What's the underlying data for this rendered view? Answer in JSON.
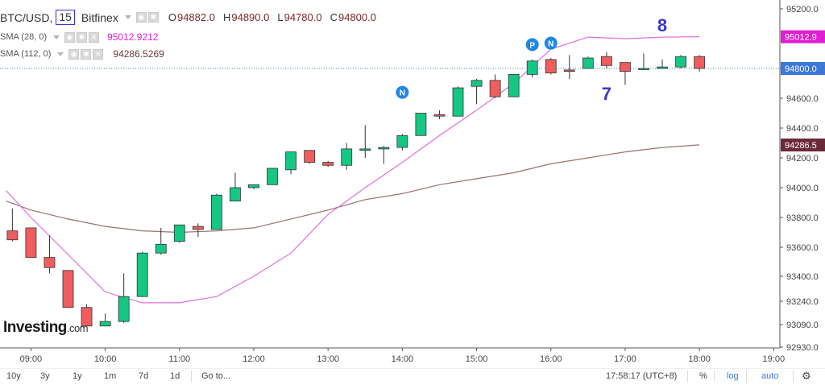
{
  "header": {
    "symbol": "BTC/USD,",
    "interval": "15",
    "exchange": "Bitfinex",
    "ohlc": [
      {
        "key": "O",
        "value": "94882.0"
      },
      {
        "key": "H",
        "value": "94890.0"
      },
      {
        "key": "L",
        "value": "94780.0"
      },
      {
        "key": "C",
        "value": "94800.0"
      }
    ]
  },
  "indicators": [
    {
      "name": "SMA (28, 0)",
      "value": "95012.9212",
      "color": "#e020d0"
    },
    {
      "name": "SMA (112, 0)",
      "value": "94286.5269",
      "color": "#8b5a5a"
    }
  ],
  "logo": {
    "main": "Investing",
    "suffix": ".com"
  },
  "bottom_bar": {
    "ranges": [
      "10y",
      "3y",
      "1y",
      "1m",
      "7d",
      "1d"
    ],
    "goto": "Go to...",
    "time": "17:58:17 (UTC+8)",
    "percent": "%",
    "log": "log",
    "auto": "auto"
  },
  "colors": {
    "up": "#16c784",
    "down": "#f05d5e",
    "sma_fast": "#e070e0",
    "sma_slow": "#9a7070",
    "last_price_tag": "#3c78d8",
    "annotation": "#3a35c8",
    "marker": "#1e88e5"
  },
  "chart_data": {
    "type": "candlestick",
    "x_ticks": [
      "09:00",
      "10:00",
      "11:00",
      "12:00",
      "13:00",
      "14:00",
      "15:00",
      "16:00",
      "17:00",
      "18:00",
      "19:00"
    ],
    "y_ticks": [
      "95200.0",
      "94800.0",
      "94600.0",
      "94400.0",
      "94200.0",
      "94000.0",
      "93800.0",
      "93600.0",
      "93400.0",
      "93240.0",
      "93090.0",
      "92930.0"
    ],
    "y_tick_values": [
      95200,
      94800,
      94600,
      94400,
      94200,
      94000,
      93800,
      93600,
      93400,
      93240,
      93090,
      92930
    ],
    "ylim": [
      92920,
      95260
    ],
    "xlim": [
      "08:35",
      "19:05"
    ],
    "candles": [
      {
        "t": "08:45",
        "o": 93710,
        "h": 93860,
        "l": 93640,
        "c": 93650
      },
      {
        "t": "09:00",
        "o": 93730,
        "h": 93730,
        "l": 93530,
        "c": 93530
      },
      {
        "t": "09:15",
        "o": 93530,
        "h": 93680,
        "l": 93420,
        "c": 93460
      },
      {
        "t": "09:30",
        "o": 93440,
        "h": 93440,
        "l": 93200,
        "c": 93200
      },
      {
        "t": "09:45",
        "o": 93200,
        "h": 93220,
        "l": 93080,
        "c": 93080
      },
      {
        "t": "10:00",
        "o": 93080,
        "h": 93160,
        "l": 93080,
        "c": 93110
      },
      {
        "t": "10:15",
        "o": 93110,
        "h": 93420,
        "l": 93100,
        "c": 93270
      },
      {
        "t": "10:30",
        "o": 93270,
        "h": 93570,
        "l": 93270,
        "c": 93560
      },
      {
        "t": "10:45",
        "o": 93560,
        "h": 93730,
        "l": 93550,
        "c": 93620
      },
      {
        "t": "11:00",
        "o": 93640,
        "h": 93740,
        "l": 93630,
        "c": 93750
      },
      {
        "t": "11:15",
        "o": 93740,
        "h": 93760,
        "l": 93670,
        "c": 93720
      },
      {
        "t": "11:30",
        "o": 93720,
        "h": 93960,
        "l": 93720,
        "c": 93950
      },
      {
        "t": "11:45",
        "o": 93910,
        "h": 94100,
        "l": 93910,
        "c": 94000
      },
      {
        "t": "12:00",
        "o": 94000,
        "h": 94010,
        "l": 93990,
        "c": 94020
      },
      {
        "t": "12:15",
        "o": 94020,
        "h": 94130,
        "l": 94020,
        "c": 94130
      },
      {
        "t": "12:30",
        "o": 94120,
        "h": 94240,
        "l": 94090,
        "c": 94240
      },
      {
        "t": "12:45",
        "o": 94250,
        "h": 94250,
        "l": 94160,
        "c": 94170
      },
      {
        "t": "13:00",
        "o": 94170,
        "h": 94180,
        "l": 94140,
        "c": 94150
      },
      {
        "t": "13:15",
        "o": 94150,
        "h": 94300,
        "l": 94120,
        "c": 94260
      },
      {
        "t": "13:30",
        "o": 94250,
        "h": 94420,
        "l": 94200,
        "c": 94260
      },
      {
        "t": "13:45",
        "o": 94260,
        "h": 94280,
        "l": 94160,
        "c": 94270
      },
      {
        "t": "14:00",
        "o": 94270,
        "h": 94360,
        "l": 94250,
        "c": 94350
      },
      {
        "t": "14:15",
        "o": 94350,
        "h": 94500,
        "l": 94350,
        "c": 94500
      },
      {
        "t": "14:30",
        "o": 94490,
        "h": 94520,
        "l": 94460,
        "c": 94480
      },
      {
        "t": "14:45",
        "o": 94480,
        "h": 94680,
        "l": 94480,
        "c": 94670
      },
      {
        "t": "15:00",
        "o": 94680,
        "h": 94730,
        "l": 94560,
        "c": 94720
      },
      {
        "t": "15:15",
        "o": 94720,
        "h": 94760,
        "l": 94600,
        "c": 94610
      },
      {
        "t": "15:30",
        "o": 94610,
        "h": 94760,
        "l": 94610,
        "c": 94760
      },
      {
        "t": "15:45",
        "o": 94760,
        "h": 94860,
        "l": 94740,
        "c": 94850
      },
      {
        "t": "16:00",
        "o": 94860,
        "h": 94870,
        "l": 94760,
        "c": 94770
      },
      {
        "t": "16:15",
        "o": 94790,
        "h": 94890,
        "l": 94730,
        "c": 94780
      },
      {
        "t": "16:30",
        "o": 94800,
        "h": 94880,
        "l": 94800,
        "c": 94870
      },
      {
        "t": "16:45",
        "o": 94880,
        "h": 94910,
        "l": 94800,
        "c": 94820
      },
      {
        "t": "17:00",
        "o": 94840,
        "h": 94840,
        "l": 94690,
        "c": 94780
      },
      {
        "t": "17:15",
        "o": 94800,
        "h": 94900,
        "l": 94790,
        "c": 94800
      },
      {
        "t": "17:30",
        "o": 94800,
        "h": 94860,
        "l": 94800,
        "c": 94810
      },
      {
        "t": "17:45",
        "o": 94810,
        "h": 94890,
        "l": 94800,
        "c": 94880
      },
      {
        "t": "18:00",
        "o": 94880,
        "h": 94890,
        "l": 94780,
        "c": 94800
      }
    ],
    "sma_fast": {
      "name": "SMA (28, 0)",
      "points": [
        [
          "08:40",
          93980
        ],
        [
          "09:00",
          93800
        ],
        [
          "09:30",
          93550
        ],
        [
          "10:00",
          93300
        ],
        [
          "10:30",
          93230
        ],
        [
          "11:00",
          93230
        ],
        [
          "11:30",
          93270
        ],
        [
          "12:00",
          93400
        ],
        [
          "12:30",
          93560
        ],
        [
          "13:00",
          93820
        ],
        [
          "13:30",
          94000
        ],
        [
          "14:00",
          94170
        ],
        [
          "14:30",
          94350
        ],
        [
          "15:00",
          94520
        ],
        [
          "15:30",
          94700
        ],
        [
          "16:00",
          94930
        ],
        [
          "16:30",
          95010
        ],
        [
          "17:00",
          95000
        ],
        [
          "17:30",
          95010
        ],
        [
          "18:00",
          95013
        ]
      ]
    },
    "sma_slow": {
      "name": "SMA (112, 0)",
      "points": [
        [
          "08:40",
          93910
        ],
        [
          "09:00",
          93850
        ],
        [
          "09:30",
          93790
        ],
        [
          "10:00",
          93740
        ],
        [
          "10:30",
          93710
        ],
        [
          "11:00",
          93700
        ],
        [
          "11:30",
          93710
        ],
        [
          "12:00",
          93730
        ],
        [
          "12:30",
          93790
        ],
        [
          "13:00",
          93850
        ],
        [
          "13:30",
          93920
        ],
        [
          "14:00",
          93960
        ],
        [
          "14:30",
          94020
        ],
        [
          "15:00",
          94060
        ],
        [
          "15:30",
          94100
        ],
        [
          "16:00",
          94160
        ],
        [
          "16:30",
          94200
        ],
        [
          "17:00",
          94240
        ],
        [
          "17:30",
          94270
        ],
        [
          "18:00",
          94287
        ]
      ]
    },
    "last_price": {
      "value": 94800,
      "label": "94800.0"
    },
    "price_tags": [
      {
        "value": 95012.9,
        "label": "95012.9",
        "color": "#e020d0"
      },
      {
        "value": 94286.5,
        "label": "94286.5",
        "color": "#6b2a3a"
      }
    ],
    "markers": [
      {
        "t": "14:00",
        "y": 94640,
        "label": "N"
      },
      {
        "t": "15:45",
        "y": 94960,
        "label": "P"
      },
      {
        "t": "16:00",
        "y": 94970,
        "label": "N"
      }
    ],
    "annotations": [
      {
        "text": "8",
        "t": "17:30",
        "y": 95050
      },
      {
        "text": "7",
        "t": "16:45",
        "y": 94590
      }
    ]
  }
}
